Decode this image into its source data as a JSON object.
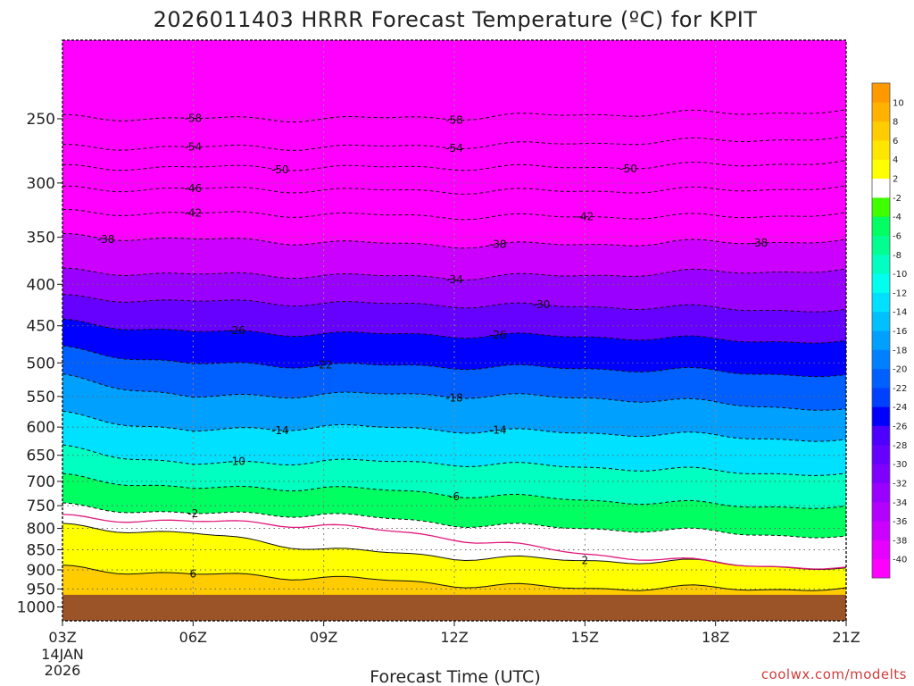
{
  "chart_data": {
    "type": "contour",
    "title": "2026011403 HRRR Forecast Temperature (ºC) for KPIT",
    "xlabel": "Forecast Time (UTC)",
    "ylabel": "",
    "credit": "coolwx.com/modelts",
    "x_ticks": [
      "03Z",
      "06Z",
      "09Z",
      "12Z",
      "15Z",
      "18Z",
      "21Z"
    ],
    "x_start_date": [
      "14JAN",
      "2026"
    ],
    "x_hours": [
      3,
      21
    ],
    "y_ticks": [
      250,
      300,
      350,
      400,
      450,
      500,
      550,
      600,
      650,
      700,
      750,
      800,
      850,
      900,
      950,
      1000
    ],
    "y_range_hpa": [
      200,
      1040
    ],
    "surface_pressure_hpa": 966,
    "underground_color": "#9a5428",
    "colorbar": {
      "levels": [
        -42,
        -40,
        -38,
        -36,
        -34,
        -32,
        -30,
        -28,
        -26,
        -24,
        -22,
        -20,
        -18,
        -16,
        -14,
        -12,
        -10,
        -8,
        -6,
        -4,
        -2,
        2,
        4,
        6,
        8,
        10,
        12
      ],
      "labels": [
        "-40",
        "-38",
        "-36",
        "-34",
        "-32",
        "-30",
        "-28",
        "-26",
        "-24",
        "-22",
        "-20",
        "-18",
        "-16",
        "-14",
        "-12",
        "-10",
        "-8",
        "-6",
        "-4",
        "-2",
        "2",
        "4",
        "6",
        "8",
        "10"
      ],
      "colors": [
        "#ff00ff",
        "#e600ff",
        "#cc00ff",
        "#b300ff",
        "#9900ff",
        "#8000ff",
        "#6600ff",
        "#4d00ff",
        "#0000ff",
        "#0040ff",
        "#0060ff",
        "#0080ff",
        "#00a0ff",
        "#00c0ff",
        "#00e0ff",
        "#00ffee",
        "#00ffc0",
        "#00ff90",
        "#00ff60",
        "#40ff00",
        "#ffffff",
        "#ffff00",
        "#ffe600",
        "#ffcc00",
        "#ffb300",
        "#ff9900"
      ]
    },
    "isotherms": [
      {
        "temp": -58,
        "label": "-58",
        "p": [
          249,
          250,
          250,
          249,
          247,
          246,
          245
        ],
        "labels_at": [
          6,
          12
        ]
      },
      {
        "temp": -54,
        "label": "-54",
        "p": [
          271,
          271,
          271,
          270,
          268,
          266,
          264
        ],
        "labels_at": [
          6,
          12
        ]
      },
      {
        "temp": -50,
        "label": "-50",
        "p": [
          287,
          287,
          287,
          287,
          287,
          285,
          283
        ],
        "labels_at": [
          8,
          16
        ]
      },
      {
        "temp": -46,
        "label": "-46",
        "p": [
          305,
          305,
          306,
          307,
          307,
          306,
          304
        ],
        "labels_at": [
          6
        ]
      },
      {
        "temp": -42,
        "label": "-42",
        "p": [
          326,
          327,
          328,
          330,
          330,
          330,
          328
        ],
        "labels_at": [
          6,
          15
        ]
      },
      {
        "temp": -38,
        "label": "-38",
        "p": [
          349,
          352,
          355,
          358,
          357,
          355,
          354
        ],
        "labels_at": [
          4,
          13,
          19
        ]
      },
      {
        "temp": -34,
        "label": "-34",
        "p": [
          385,
          389,
          390,
          392,
          390,
          386,
          385
        ],
        "labels_at": [
          12
        ]
      },
      {
        "temp": -30,
        "label": "-30",
        "p": [
          415,
          420,
          422,
          424,
          426,
          428,
          432
        ],
        "labels_at": [
          14
        ]
      },
      {
        "temp": -26,
        "label": "-26",
        "p": [
          445,
          458,
          460,
          462,
          464,
          468,
          472
        ],
        "labels_at": [
          7,
          13
        ]
      },
      {
        "temp": -22,
        "label": "-22",
        "p": [
          480,
          502,
          503,
          505,
          508,
          512,
          520
        ],
        "labels_at": [
          9
        ]
      },
      {
        "temp": -18,
        "label": "-18",
        "p": [
          520,
          552,
          546,
          548,
          552,
          560,
          573
        ],
        "labels_at": [
          12
        ]
      },
      {
        "temp": -14,
        "label": "-14",
        "p": [
          578,
          608,
          598,
          605,
          610,
          615,
          625
        ],
        "labels_at": [
          8,
          13
        ]
      },
      {
        "temp": -10,
        "label": "-10",
        "p": [
          636,
          668,
          660,
          665,
          672,
          680,
          688
        ],
        "labels_at": [
          7
        ]
      },
      {
        "temp": -6,
        "label": "-6",
        "p": [
          690,
          715,
          712,
          726,
          738,
          748,
          755
        ],
        "labels_at": [
          12
        ]
      },
      {
        "temp": -2,
        "label": "-2",
        "p": [
          750,
          768,
          768,
          790,
          800,
          808,
          822
        ],
        "labels_at": [
          6
        ]
      },
      {
        "temp": 2,
        "label": "2",
        "p": [
          795,
          812,
          848,
          868,
          876,
          882,
          900
        ],
        "labels_at": [
          15
        ]
      },
      {
        "temp": 6,
        "label": "6",
        "p": [
          895,
          912,
          919,
          938,
          948,
          948,
          952
        ],
        "labels_at": [
          6
        ]
      }
    ],
    "freezing_line_p": [
      775,
      785,
      792,
      822,
      860,
      883,
      898
    ]
  }
}
